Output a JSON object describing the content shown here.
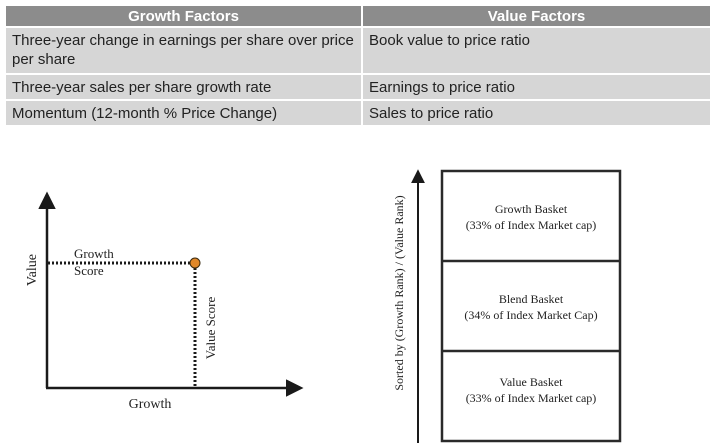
{
  "table": {
    "headers": [
      "Growth Factors",
      "Value Factors"
    ],
    "rows": [
      [
        "Three-year change in earnings per share over price per share",
        "Book value to price ratio"
      ],
      [
        "Three-year sales per share growth rate",
        "Earnings to price ratio"
      ],
      [
        "Momentum (12-month % Price Change)",
        "Sales to price ratio"
      ]
    ]
  },
  "left_chart": {
    "y_axis_label": "Value",
    "x_axis_label": "Growth",
    "growth_score_label_line1": "Growth",
    "growth_score_label_line2": "Score",
    "value_score_label": "Value Score",
    "point_color": "#e0882a"
  },
  "right_chart": {
    "axis_label": "Sorted by (Growth Rank) / (Value Rank)",
    "baskets": [
      {
        "name": "Growth Basket",
        "detail": "(33% of Index Market cap)"
      },
      {
        "name": "Blend Basket",
        "detail": "(34% of Index Market Cap)"
      },
      {
        "name": "Value Basket",
        "detail": "(33% of Index Market cap)"
      }
    ]
  }
}
